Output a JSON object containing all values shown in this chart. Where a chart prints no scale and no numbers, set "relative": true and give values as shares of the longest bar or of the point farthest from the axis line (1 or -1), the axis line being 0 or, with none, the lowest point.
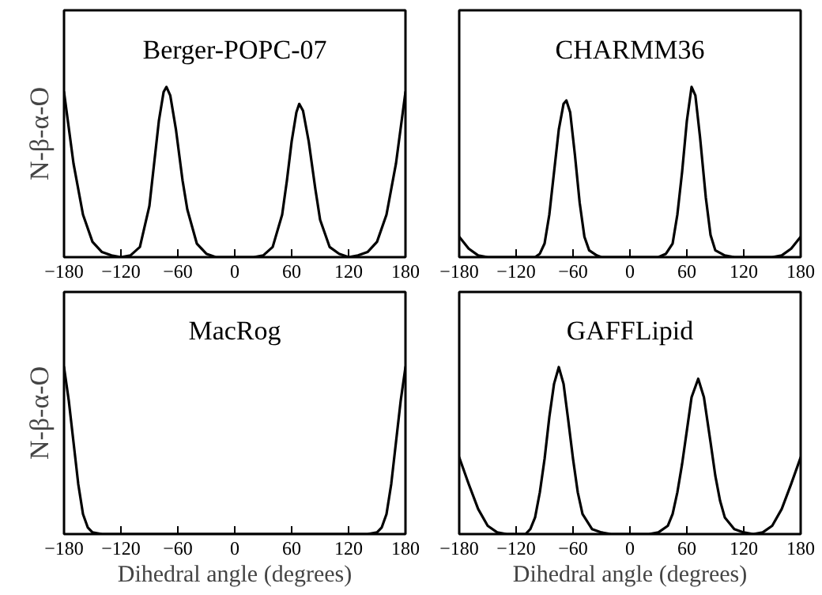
{
  "chart_data": [
    {
      "type": "line",
      "title": "Berger-POPC-07",
      "ylabel": "N-β-α-O",
      "relative": true,
      "xlim": [
        -180,
        180
      ],
      "xticks": [
        -180,
        -120,
        -60,
        0,
        60,
        120,
        180
      ],
      "grid": false,
      "series": [
        {
          "color": "#000000",
          "x": [
            -180,
            -170,
            -160,
            -150,
            -140,
            -130,
            -120,
            -110,
            -100,
            -90,
            -85,
            -80,
            -75,
            -72,
            -68,
            -62,
            -55,
            -50,
            -40,
            -30,
            -20,
            0,
            20,
            30,
            40,
            50,
            55,
            60,
            65,
            68,
            72,
            78,
            85,
            90,
            100,
            110,
            120,
            130,
            140,
            150,
            160,
            170,
            180
          ],
          "values": [
            0.97,
            0.55,
            0.25,
            0.09,
            0.03,
            0.01,
            0,
            0.01,
            0.06,
            0.3,
            0.55,
            0.8,
            0.97,
            1.0,
            0.95,
            0.75,
            0.45,
            0.28,
            0.08,
            0.02,
            0,
            0,
            0,
            0.01,
            0.06,
            0.25,
            0.45,
            0.68,
            0.85,
            0.9,
            0.86,
            0.68,
            0.4,
            0.22,
            0.06,
            0.02,
            0,
            0.01,
            0.03,
            0.09,
            0.25,
            0.55,
            0.97
          ]
        }
      ]
    },
    {
      "type": "line",
      "title": "CHARMM36",
      "relative": true,
      "xlim": [
        -180,
        180
      ],
      "xticks": [
        -180,
        -120,
        -60,
        0,
        60,
        120,
        180
      ],
      "grid": false,
      "series": [
        {
          "color": "#000000",
          "x": [
            -180,
            -170,
            -160,
            -150,
            -100,
            -95,
            -90,
            -85,
            -80,
            -75,
            -70,
            -67,
            -63,
            -58,
            -53,
            -48,
            -43,
            -35,
            -30,
            30,
            38,
            45,
            50,
            55,
            60,
            65,
            69,
            74,
            80,
            85,
            90,
            100,
            110,
            150,
            160,
            170,
            180
          ],
          "values": [
            0.12,
            0.05,
            0.01,
            0,
            0,
            0.02,
            0.08,
            0.25,
            0.5,
            0.75,
            0.9,
            0.92,
            0.85,
            0.6,
            0.32,
            0.12,
            0.04,
            0.01,
            0,
            0,
            0.02,
            0.08,
            0.25,
            0.5,
            0.8,
            1.0,
            0.95,
            0.7,
            0.35,
            0.13,
            0.04,
            0.01,
            0,
            0,
            0.01,
            0.05,
            0.12
          ]
        }
      ]
    },
    {
      "type": "line",
      "title": "MacRog",
      "ylabel": "N-β-α-O",
      "xlabel": "Dihedral angle (degrees)",
      "relative": true,
      "xlim": [
        -180,
        180
      ],
      "xticks": [
        -180,
        -120,
        -60,
        0,
        60,
        120,
        180
      ],
      "grid": false,
      "series": [
        {
          "color": "#000000",
          "x": [
            -180,
            -175,
            -170,
            -165,
            -160,
            -155,
            -150,
            -140,
            140,
            150,
            155,
            160,
            165,
            170,
            175,
            180
          ],
          "values": [
            1.0,
            0.8,
            0.55,
            0.3,
            0.12,
            0.04,
            0.01,
            0,
            0,
            0.01,
            0.04,
            0.12,
            0.3,
            0.55,
            0.8,
            1.0
          ]
        }
      ]
    },
    {
      "type": "line",
      "title": "GAFFLipid",
      "xlabel": "Dihedral angle (degrees)",
      "relative": true,
      "xlim": [
        -180,
        180
      ],
      "xticks": [
        -180,
        -120,
        -60,
        0,
        60,
        120,
        180
      ],
      "grid": false,
      "series": [
        {
          "color": "#000000",
          "x": [
            -180,
            -170,
            -160,
            -150,
            -140,
            -130,
            -110,
            -105,
            -100,
            -95,
            -90,
            -85,
            -80,
            -75,
            -70,
            -65,
            -60,
            -55,
            -50,
            -40,
            -30,
            -20,
            20,
            30,
            40,
            45,
            50,
            55,
            60,
            65,
            72,
            78,
            85,
            90,
            95,
            100,
            110,
            120,
            130,
            140,
            150,
            160,
            170,
            180
          ],
          "values": [
            0.46,
            0.3,
            0.15,
            0.05,
            0.01,
            0,
            0,
            0.03,
            0.1,
            0.25,
            0.45,
            0.7,
            0.9,
            1.0,
            0.9,
            0.68,
            0.45,
            0.25,
            0.12,
            0.03,
            0.01,
            0,
            0,
            0.01,
            0.05,
            0.12,
            0.25,
            0.42,
            0.62,
            0.82,
            0.93,
            0.82,
            0.55,
            0.35,
            0.2,
            0.1,
            0.03,
            0.01,
            0,
            0.01,
            0.05,
            0.15,
            0.3,
            0.46
          ]
        }
      ]
    }
  ]
}
